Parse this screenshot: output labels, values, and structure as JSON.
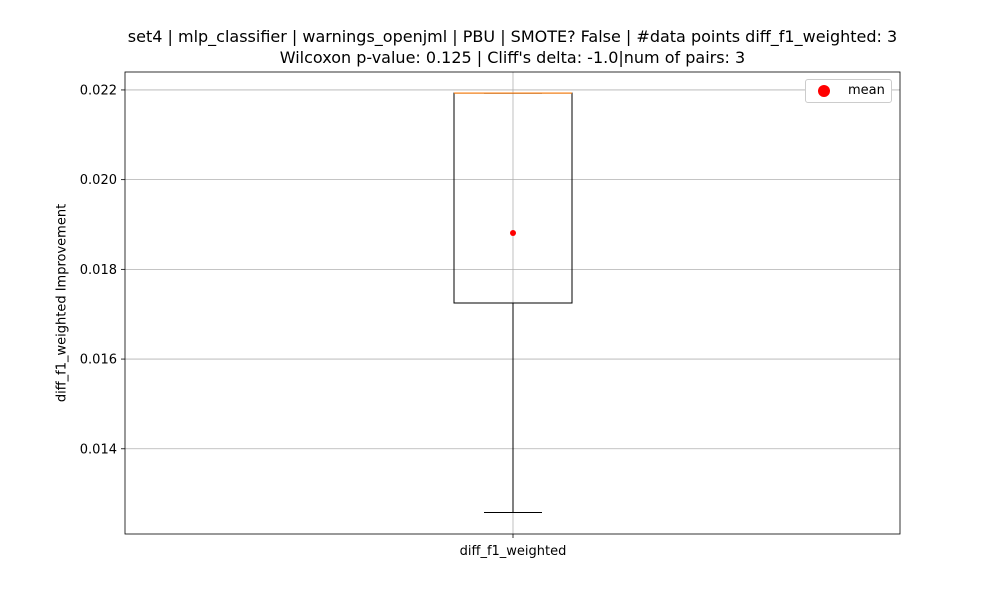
{
  "chart_data": {
    "type": "box",
    "title": "set4 | mlp_classifier | warnings_openjml | PBU | SMOTE? False | #data points diff_f1_weighted: 3",
    "subtitle": "Wilcoxon p-value: 0.125 | Cliff's delta: -1.0|num of pairs: 3",
    "xlabel": "",
    "ylabel": "diff_f1_weighted Improvement",
    "categories": [
      "diff_f1_weighted"
    ],
    "box": {
      "whisker_low": 0.01258,
      "q1": 0.01725,
      "median": 0.02193,
      "q3": 0.02193,
      "whisker_high": 0.02193,
      "mean": 0.01881
    },
    "ylim": [
      0.0121,
      0.0224
    ],
    "yticks": [
      "0.014",
      "0.016",
      "0.018",
      "0.020",
      "0.022"
    ],
    "ytick_values": [
      0.014,
      0.016,
      0.018,
      0.02,
      0.022
    ],
    "grid": true,
    "legend": {
      "position": "top-right",
      "entries": [
        "mean"
      ]
    },
    "colors": {
      "box": "#000000",
      "median": "#ff7f0e",
      "mean": "#ff0000",
      "grid": "#b0b0b0"
    }
  }
}
